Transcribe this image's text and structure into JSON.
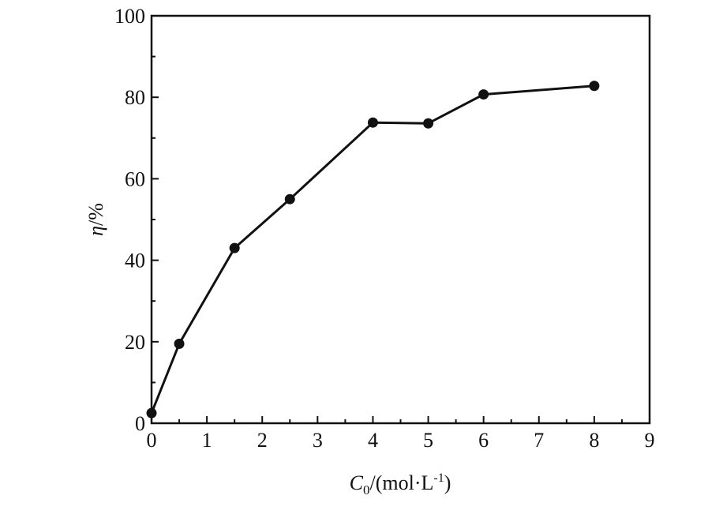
{
  "chart_data": {
    "type": "line",
    "title": "",
    "xlabel_main": "C",
    "xlabel_sub": "0",
    "xlabel_unit": "/(mol·L",
    "xlabel_sup": "-1",
    "xlabel_close": ")",
    "ylabel_symbol": "η",
    "ylabel_unit": "/%",
    "xlim": [
      0,
      9
    ],
    "ylim": [
      0,
      100
    ],
    "xticks": [
      0,
      1,
      2,
      3,
      4,
      5,
      6,
      7,
      8,
      9
    ],
    "yticks": [
      0,
      20,
      40,
      60,
      80,
      100
    ],
    "grid": false,
    "marker_color": "#111111",
    "line_color": "#111111",
    "series": [
      {
        "x": [
          0,
          0.5,
          1.5,
          2.5,
          4,
          5,
          6,
          8
        ],
        "y": [
          2.5,
          19.5,
          43,
          55,
          73.8,
          73.6,
          80.7,
          82.8
        ]
      }
    ]
  }
}
